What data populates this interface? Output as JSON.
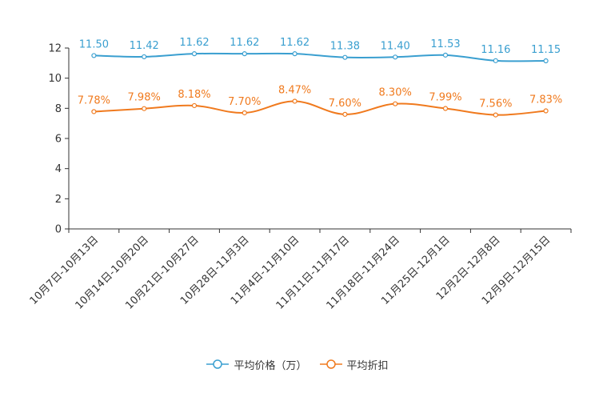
{
  "chart_data": {
    "type": "line",
    "title": "",
    "xlabel": "",
    "ylabel": "",
    "ylim": [
      0,
      12
    ],
    "yticks": [
      "0",
      "2",
      "4",
      "6",
      "8",
      "10",
      "12"
    ],
    "categories": [
      "10月7日-10月13日",
      "10月14日-10月20日",
      "10月21日-10月27日",
      "10月28日-11月3日",
      "11月4日-11月10日",
      "11月11日-11月17日",
      "11月18日-11月24日",
      "11月25日-12月1日",
      "12月2日-12月8日",
      "12月9日-12月15日"
    ],
    "series": [
      {
        "name": "平均价格（万）",
        "color": "#3a9fd0",
        "values": [
          11.5,
          11.42,
          11.62,
          11.62,
          11.62,
          11.38,
          11.4,
          11.53,
          11.16,
          11.15
        ],
        "labels": [
          "11.50",
          "11.42",
          "11.62",
          "11.62",
          "11.62",
          "11.38",
          "11.40",
          "11.53",
          "11.16",
          "11.15"
        ]
      },
      {
        "name": "平均折扣",
        "color": "#f07a1e",
        "values": [
          7.78,
          7.98,
          8.18,
          7.7,
          8.47,
          7.6,
          8.3,
          7.99,
          7.56,
          7.83
        ],
        "labels": [
          "7.78%",
          "7.98%",
          "8.18%",
          "7.70%",
          "8.47%",
          "7.60%",
          "8.30%",
          "7.99%",
          "7.56%",
          "7.83%"
        ]
      }
    ],
    "legend_position": "bottom-center"
  }
}
